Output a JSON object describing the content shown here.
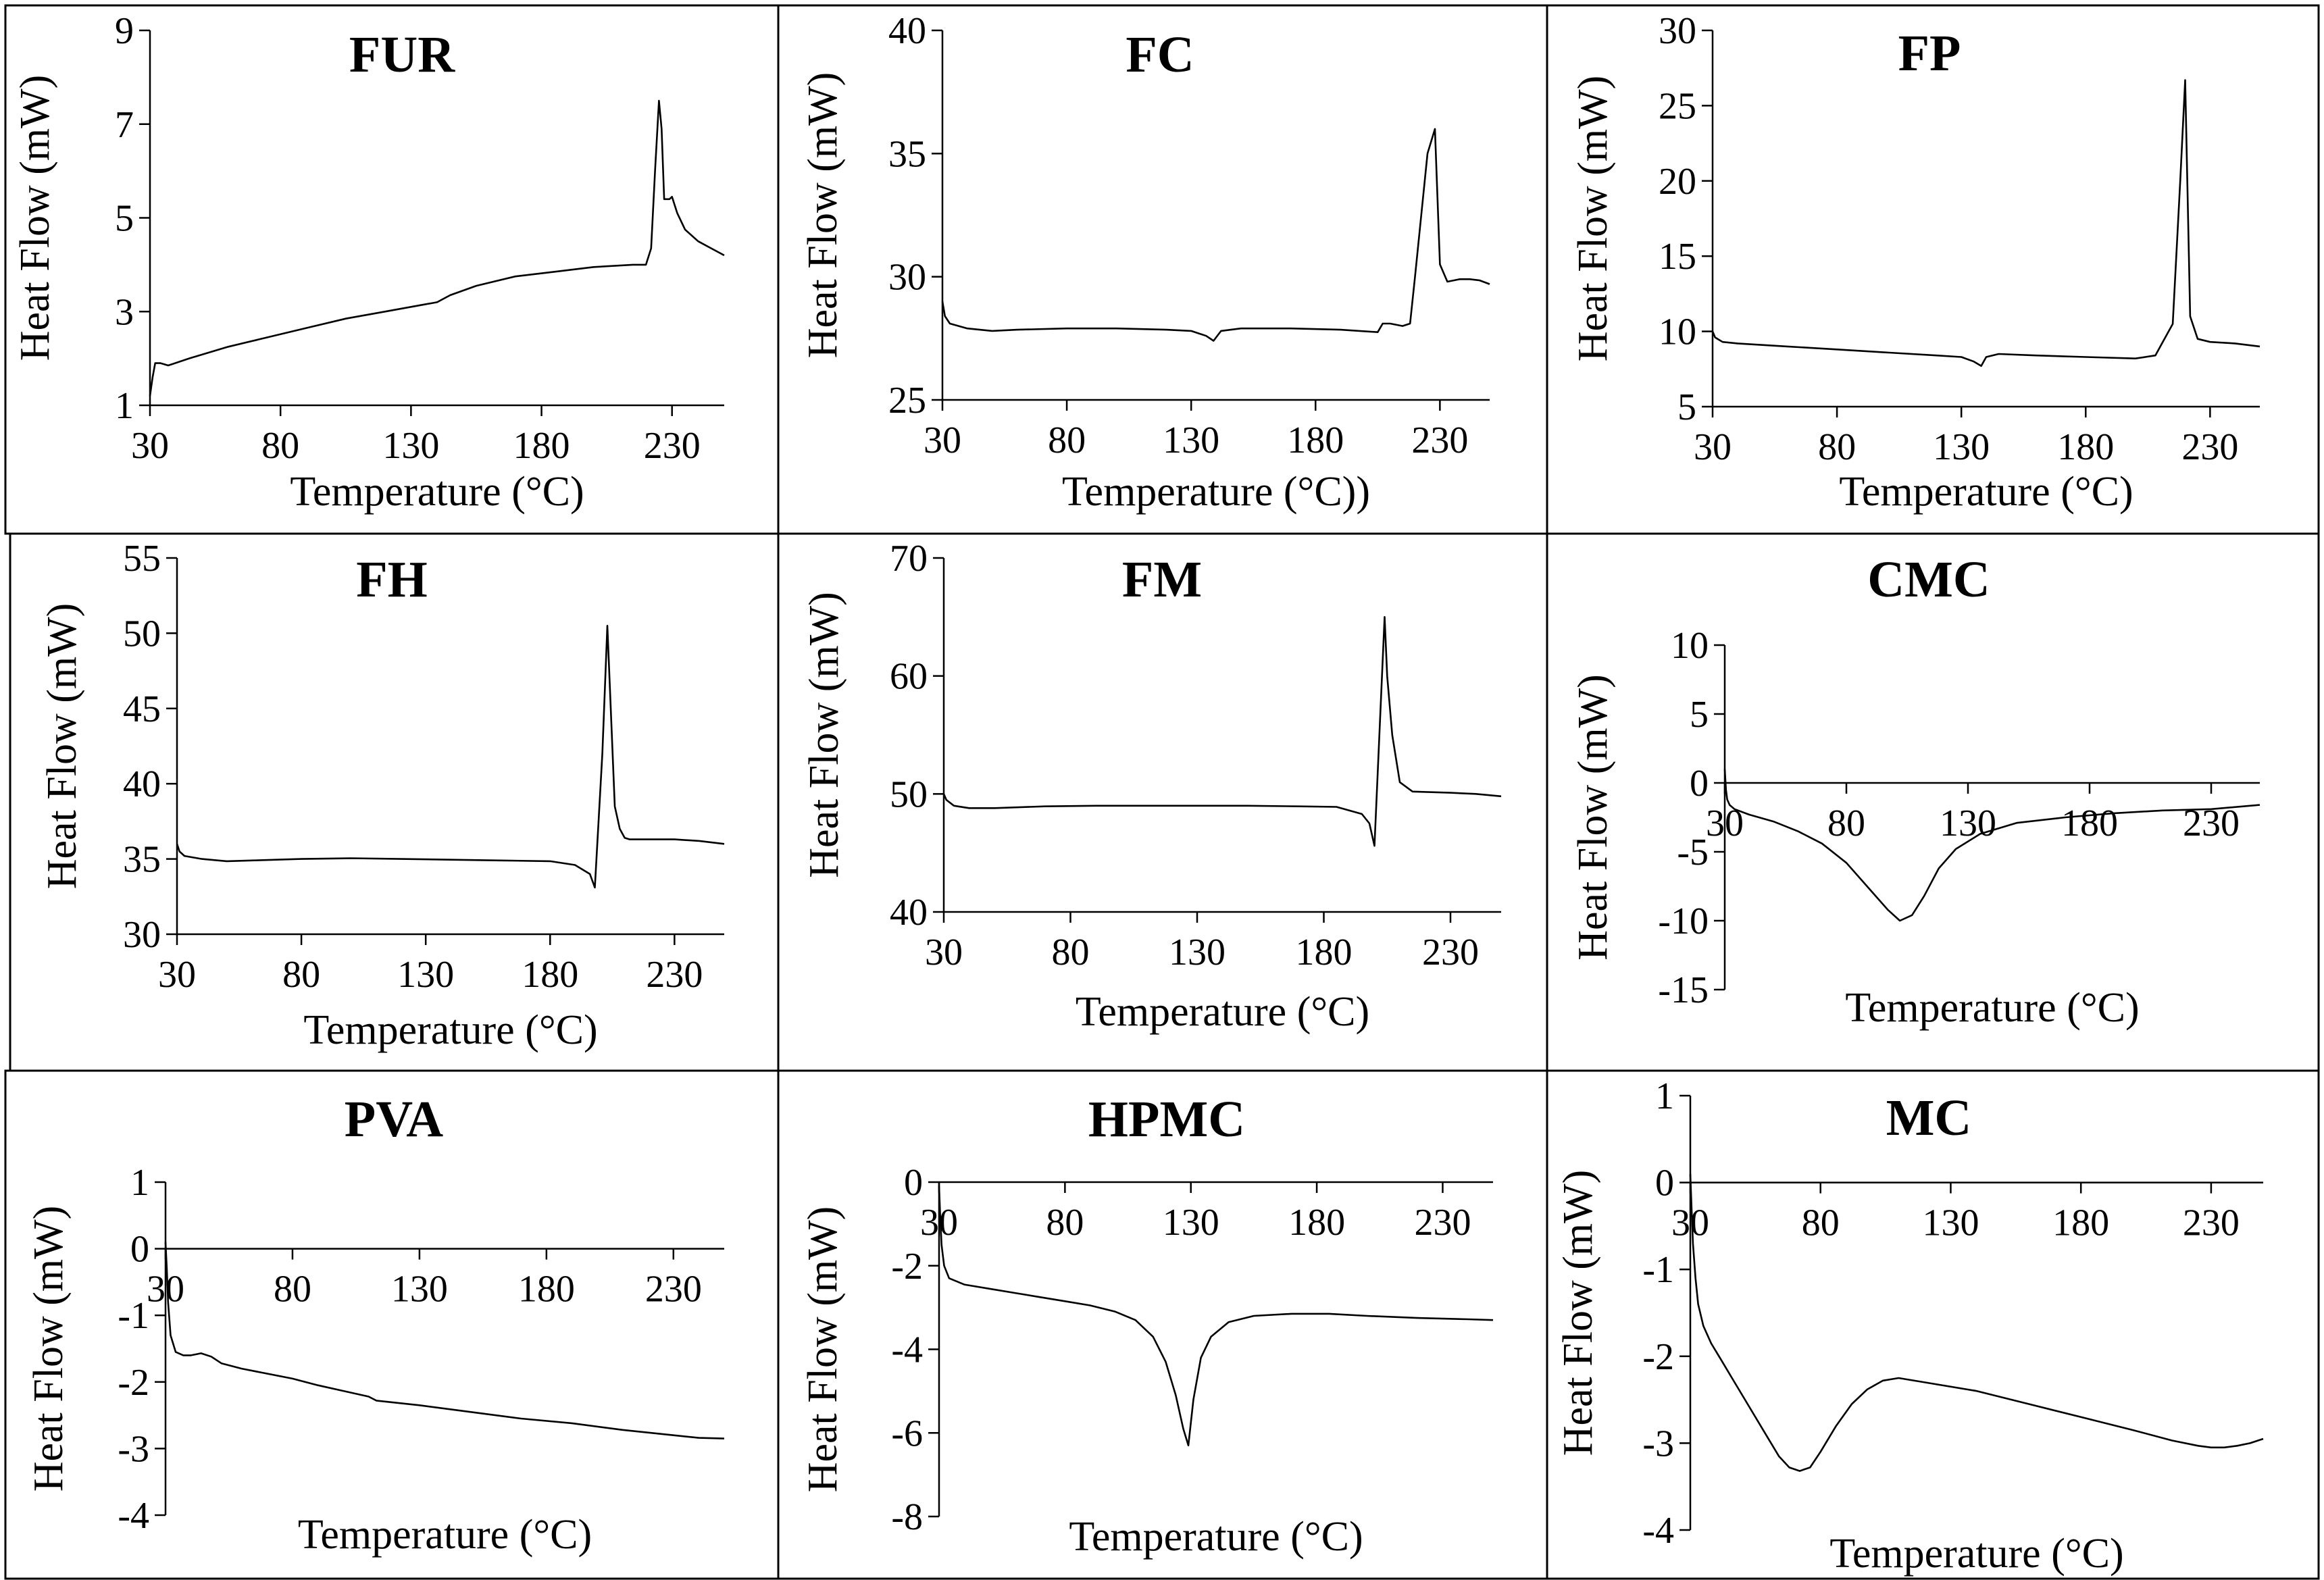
{
  "chart_data": [
    {
      "type": "line",
      "title": "FUR",
      "xlabel": "Temperature (°C)",
      "ylabel": "Heat Flow (mW)",
      "xlim": [
        30,
        250
      ],
      "ylim": [
        1,
        9
      ],
      "xticks": [
        30,
        80,
        130,
        180,
        230
      ],
      "yticks": [
        1,
        3,
        5,
        7,
        9
      ],
      "grid": false,
      "legend": "none",
      "series": [
        {
          "x": [
            30,
            31,
            32,
            34,
            37,
            45,
            60,
            75,
            90,
            105,
            120,
            135,
            140,
            145,
            155,
            170,
            185,
            200,
            215,
            220,
            222,
            223.5,
            225,
            226,
            227,
            228,
            229,
            230,
            232,
            235,
            240,
            245,
            250
          ],
          "y": [
            1.2,
            1.6,
            1.9,
            1.9,
            1.85,
            2.0,
            2.25,
            2.45,
            2.65,
            2.85,
            3.0,
            3.15,
            3.2,
            3.35,
            3.55,
            3.75,
            3.85,
            3.95,
            4.0,
            4.0,
            4.35,
            6.0,
            7.5,
            6.9,
            5.4,
            5.4,
            5.4,
            5.45,
            5.1,
            4.75,
            4.5,
            4.35,
            4.2
          ]
        }
      ]
    },
    {
      "type": "line",
      "title": "FC",
      "xlabel": "Temperature (°C))",
      "ylabel": "Heat Flow (mW)",
      "xlim": [
        30,
        250
      ],
      "ylim": [
        25,
        40
      ],
      "xticks": [
        30,
        80,
        130,
        180,
        230
      ],
      "yticks": [
        25,
        30,
        35,
        40
      ],
      "grid": false,
      "legend": "none",
      "series": [
        {
          "x": [
            30,
            31,
            33,
            40,
            50,
            60,
            80,
            100,
            120,
            130,
            136,
            139,
            142,
            150,
            170,
            190,
            205,
            207,
            210,
            215,
            218,
            220,
            225,
            228,
            230,
            233,
            238,
            242,
            246,
            250
          ],
          "y": [
            29.0,
            28.4,
            28.1,
            27.9,
            27.8,
            27.85,
            27.9,
            27.9,
            27.85,
            27.8,
            27.6,
            27.4,
            27.8,
            27.9,
            27.9,
            27.85,
            27.75,
            28.1,
            28.1,
            28.0,
            28.1,
            30.0,
            35.0,
            36.0,
            30.5,
            29.8,
            29.9,
            29.9,
            29.85,
            29.7
          ]
        }
      ]
    },
    {
      "type": "line",
      "title": "FP",
      "xlabel": "Temperature (°C)",
      "ylabel": "Heat Flow (mW)",
      "xlim": [
        30,
        250
      ],
      "ylim": [
        5,
        30
      ],
      "xticks": [
        30,
        80,
        130,
        180,
        230
      ],
      "yticks": [
        5,
        10,
        15,
        20,
        25,
        30
      ],
      "grid": false,
      "legend": "none",
      "series": [
        {
          "x": [
            30,
            31,
            34,
            40,
            60,
            80,
            100,
            120,
            130,
            135,
            138,
            140,
            145,
            160,
            180,
            200,
            208,
            210,
            215,
            218,
            220,
            222,
            225,
            230,
            240,
            250
          ],
          "y": [
            10.0,
            9.6,
            9.3,
            9.2,
            9.0,
            8.8,
            8.6,
            8.4,
            8.3,
            8.0,
            7.7,
            8.3,
            8.5,
            8.4,
            8.3,
            8.2,
            8.4,
            9.0,
            10.5,
            20.0,
            26.7,
            11.0,
            9.5,
            9.3,
            9.2,
            9.0
          ]
        }
      ]
    },
    {
      "type": "line",
      "title": "FH",
      "xlabel": "Temperature (°C)",
      "ylabel": "Heat Flow (mW)",
      "xlim": [
        30,
        250
      ],
      "ylim": [
        30,
        55
      ],
      "xticks": [
        30,
        80,
        130,
        180,
        230
      ],
      "yticks": [
        30,
        35,
        40,
        45,
        50,
        55
      ],
      "grid": false,
      "legend": "none",
      "series": [
        {
          "x": [
            30,
            31,
            33,
            40,
            50,
            60,
            80,
            100,
            120,
            140,
            160,
            180,
            190,
            196,
            198,
            201,
            203,
            206,
            208,
            210,
            212,
            215,
            220,
            230,
            240,
            250
          ],
          "y": [
            36.0,
            35.5,
            35.2,
            35.0,
            34.85,
            34.9,
            35.0,
            35.05,
            35.0,
            34.95,
            34.9,
            34.85,
            34.6,
            34.0,
            33.1,
            42.0,
            50.5,
            38.5,
            37.0,
            36.4,
            36.3,
            36.3,
            36.3,
            36.3,
            36.2,
            36.0
          ]
        }
      ]
    },
    {
      "type": "line",
      "title": "FM",
      "xlabel": "Temperature (°C)",
      "ylabel": "Heat Flow (mW)",
      "xlim": [
        30,
        250
      ],
      "ylim": [
        40,
        70
      ],
      "xticks": [
        30,
        80,
        130,
        180,
        230
      ],
      "yticks": [
        40,
        50,
        60,
        70
      ],
      "grid": false,
      "legend": "none",
      "series": [
        {
          "x": [
            30,
            31,
            34,
            40,
            50,
            70,
            90,
            110,
            130,
            150,
            170,
            185,
            195,
            198,
            200,
            204,
            205,
            207,
            210,
            215,
            230,
            240,
            250
          ],
          "y": [
            50.0,
            49.5,
            49.0,
            48.8,
            48.8,
            48.95,
            49.0,
            49.0,
            49.0,
            49.0,
            48.95,
            48.9,
            48.3,
            47.5,
            45.6,
            65.0,
            60.0,
            55.0,
            51.0,
            50.2,
            50.1,
            50.0,
            49.8
          ]
        }
      ]
    },
    {
      "type": "line",
      "title": "CMC",
      "xlabel": "Temperature (°C)",
      "ylabel": "Heat Flow (mW)",
      "xlim": [
        30,
        250
      ],
      "ylim": [
        -15,
        10
      ],
      "xticks": [
        30,
        80,
        130,
        180,
        230
      ],
      "yticks": [
        -15,
        -10,
        -5,
        0,
        5,
        10
      ],
      "grid": false,
      "legend": "none",
      "series": [
        {
          "x": [
            30,
            30.5,
            31,
            32,
            34,
            40,
            50,
            60,
            70,
            80,
            90,
            97,
            102,
            107,
            112,
            118,
            125,
            135,
            150,
            170,
            190,
            210,
            230,
            250
          ],
          "y": [
            1.0,
            -0.5,
            -1.2,
            -1.6,
            -1.9,
            -2.3,
            -2.8,
            -3.5,
            -4.4,
            -5.8,
            -7.8,
            -9.2,
            -10.0,
            -9.6,
            -8.2,
            -6.2,
            -4.8,
            -3.7,
            -2.9,
            -2.5,
            -2.2,
            -2.0,
            -1.9,
            -1.6
          ]
        }
      ]
    },
    {
      "type": "line",
      "title": "PVA",
      "xlabel": "Temperature (°C)",
      "ylabel": "Heat Flow (mW)",
      "xlim": [
        30,
        250
      ],
      "ylim": [
        -4,
        1
      ],
      "xticks": [
        30,
        80,
        130,
        180,
        230
      ],
      "yticks": [
        -4,
        -3,
        -2,
        -1,
        0,
        1
      ],
      "grid": false,
      "legend": "none",
      "series": [
        {
          "x": [
            30,
            30.5,
            31,
            32,
            34,
            37,
            40,
            44,
            48,
            52,
            60,
            80,
            90,
            110,
            113,
            130,
            150,
            170,
            190,
            210,
            230,
            240,
            250
          ],
          "y": [
            0.1,
            -0.3,
            -0.8,
            -1.3,
            -1.55,
            -1.6,
            -1.6,
            -1.57,
            -1.62,
            -1.72,
            -1.8,
            -1.95,
            -2.05,
            -2.22,
            -2.28,
            -2.35,
            -2.45,
            -2.55,
            -2.62,
            -2.72,
            -2.8,
            -2.84,
            -2.85
          ]
        }
      ]
    },
    {
      "type": "line",
      "title": "HPMC",
      "xlabel": "Temperature (°C)",
      "ylabel": "Heat Flow (mW)",
      "xlim": [
        30,
        250
      ],
      "ylim": [
        -8,
        0
      ],
      "xticks": [
        30,
        80,
        130,
        180,
        230
      ],
      "yticks": [
        -8,
        -6,
        -4,
        -2,
        0
      ],
      "grid": false,
      "legend": "none",
      "series": [
        {
          "x": [
            30,
            30.5,
            31,
            32,
            34,
            40,
            50,
            60,
            70,
            80,
            90,
            100,
            108,
            115,
            120,
            124,
            127,
            129,
            131,
            134,
            138,
            145,
            155,
            170,
            185,
            200,
            220,
            240,
            250
          ],
          "y": [
            -0.1,
            -0.9,
            -1.5,
            -2.0,
            -2.3,
            -2.45,
            -2.55,
            -2.65,
            -2.75,
            -2.85,
            -2.95,
            -3.1,
            -3.3,
            -3.7,
            -4.3,
            -5.1,
            -5.9,
            -6.3,
            -5.2,
            -4.2,
            -3.7,
            -3.35,
            -3.2,
            -3.15,
            -3.15,
            -3.2,
            -3.25,
            -3.28,
            -3.3
          ]
        }
      ]
    },
    {
      "type": "line",
      "title": "MC",
      "xlabel": "Temperature (°C)",
      "ylabel": "Heat Flow (mW)",
      "xlim": [
        30,
        250
      ],
      "ylim": [
        -4,
        1
      ],
      "xticks": [
        30,
        80,
        130,
        180,
        230
      ],
      "yticks": [
        -4,
        -3,
        -2,
        -1,
        0,
        1
      ],
      "grid": false,
      "legend": "none",
      "series": [
        {
          "x": [
            30,
            30.5,
            31,
            32,
            33,
            35,
            38,
            42,
            46,
            52,
            58,
            64,
            68,
            72,
            76,
            80,
            86,
            92,
            98,
            104,
            110,
            120,
            140,
            160,
            180,
            200,
            215,
            225,
            230,
            235,
            240,
            245,
            250
          ],
          "y": [
            0.1,
            -0.3,
            -0.7,
            -1.1,
            -1.4,
            -1.65,
            -1.85,
            -2.05,
            -2.25,
            -2.55,
            -2.85,
            -3.15,
            -3.28,
            -3.32,
            -3.28,
            -3.1,
            -2.8,
            -2.55,
            -2.38,
            -2.28,
            -2.25,
            -2.3,
            -2.4,
            -2.55,
            -2.7,
            -2.85,
            -2.97,
            -3.03,
            -3.05,
            -3.05,
            -3.03,
            -3.0,
            -2.95
          ]
        }
      ]
    }
  ]
}
